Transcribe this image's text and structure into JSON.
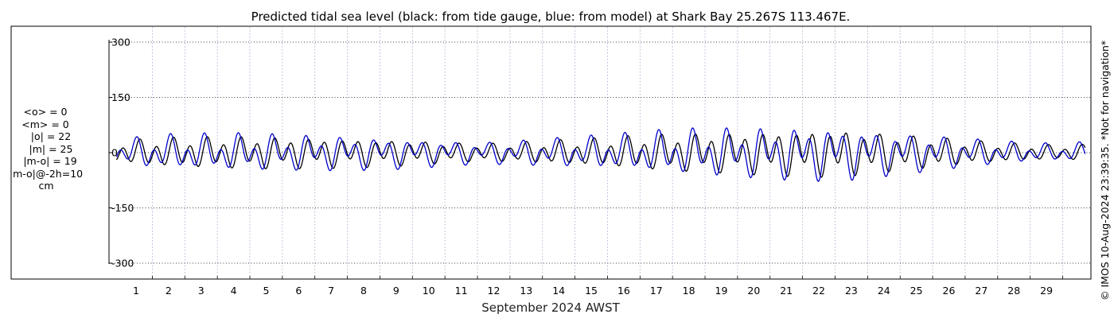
{
  "title": "Predicted tidal sea level (black: from tide gauge, blue: from model) at Shark Bay 25.267S 113.467E.",
  "xlabel": "September 2024 AWST",
  "side_note": "© IMOS 10-Aug-2024 23:39:35. *Not for navigation*",
  "stats": {
    "mean_obs": "<o> = 0",
    "mean_model": "<m> = 0",
    "abs_obs": "|o| = 22",
    "abs_model": "|m| = 25",
    "abs_diff": "|m-o| = 19",
    "abs_diff_shift": "|m-o|@-2h=10",
    "unit": "cm"
  },
  "colors": {
    "gauge": "#000000",
    "model": "#0000cc",
    "grid": "#000000",
    "day_grid": "#9aa8c8"
  },
  "chart_data": {
    "type": "line",
    "title": "Predicted tidal sea level (black: from tide gauge, blue: from model) at Shark Bay 25.267S 113.467E.",
    "xlabel": "September 2024 AWST",
    "ylabel": "",
    "x_ticks": [
      "1",
      "2",
      "3",
      "4",
      "5",
      "6",
      "7",
      "8",
      "9",
      "10",
      "11",
      "12",
      "13",
      "14",
      "15",
      "16",
      "17",
      "18",
      "19",
      "20",
      "21",
      "22",
      "23",
      "24",
      "25",
      "26",
      "27",
      "28",
      "29"
    ],
    "y_ticks": [
      300,
      150,
      0,
      -150,
      -300
    ],
    "xlim": [
      0.4,
      30.2
    ],
    "ylim": [
      -345,
      345
    ],
    "grid": true,
    "series": [
      {
        "name": "tide gauge",
        "color": "#000000",
        "envelope_x": [
          0.4,
          1.5,
          3.0,
          4.5,
          6.0,
          7.5,
          9.0,
          10.5,
          11.5,
          12.5,
          13.5,
          14.5,
          15.5,
          16.5,
          17.5,
          18.5,
          19.5,
          20.5,
          21.5,
          22.5,
          23.5,
          24.5,
          25.5,
          26.5,
          27.5,
          28.5,
          29.5,
          30.2
        ],
        "envelope_amp": [
          25,
          35,
          38,
          40,
          38,
          36,
          32,
          26,
          22,
          24,
          28,
          32,
          36,
          42,
          46,
          48,
          50,
          54,
          56,
          58,
          52,
          44,
          38,
          30,
          25,
          20,
          18,
          20
        ],
        "diurnal_ratio": 0.35
      },
      {
        "name": "model",
        "color": "#0000cc",
        "envelope_x": [
          0.4,
          1.5,
          3.0,
          4.5,
          6.0,
          7.5,
          9.0,
          10.5,
          11.5,
          12.5,
          13.5,
          14.5,
          15.5,
          16.5,
          17.5,
          18.5,
          19.5,
          20.5,
          21.5,
          22.5,
          23.5,
          24.5,
          25.5,
          26.5,
          27.5,
          28.5,
          29.5,
          30.2
        ],
        "envelope_amp": [
          28,
          40,
          42,
          44,
          42,
          40,
          36,
          30,
          26,
          28,
          32,
          36,
          40,
          46,
          52,
          56,
          58,
          60,
          62,
          62,
          56,
          48,
          42,
          34,
          28,
          22,
          20,
          24
        ],
        "diurnal_ratio": 0.55,
        "lead_hours": 2
      }
    ]
  }
}
